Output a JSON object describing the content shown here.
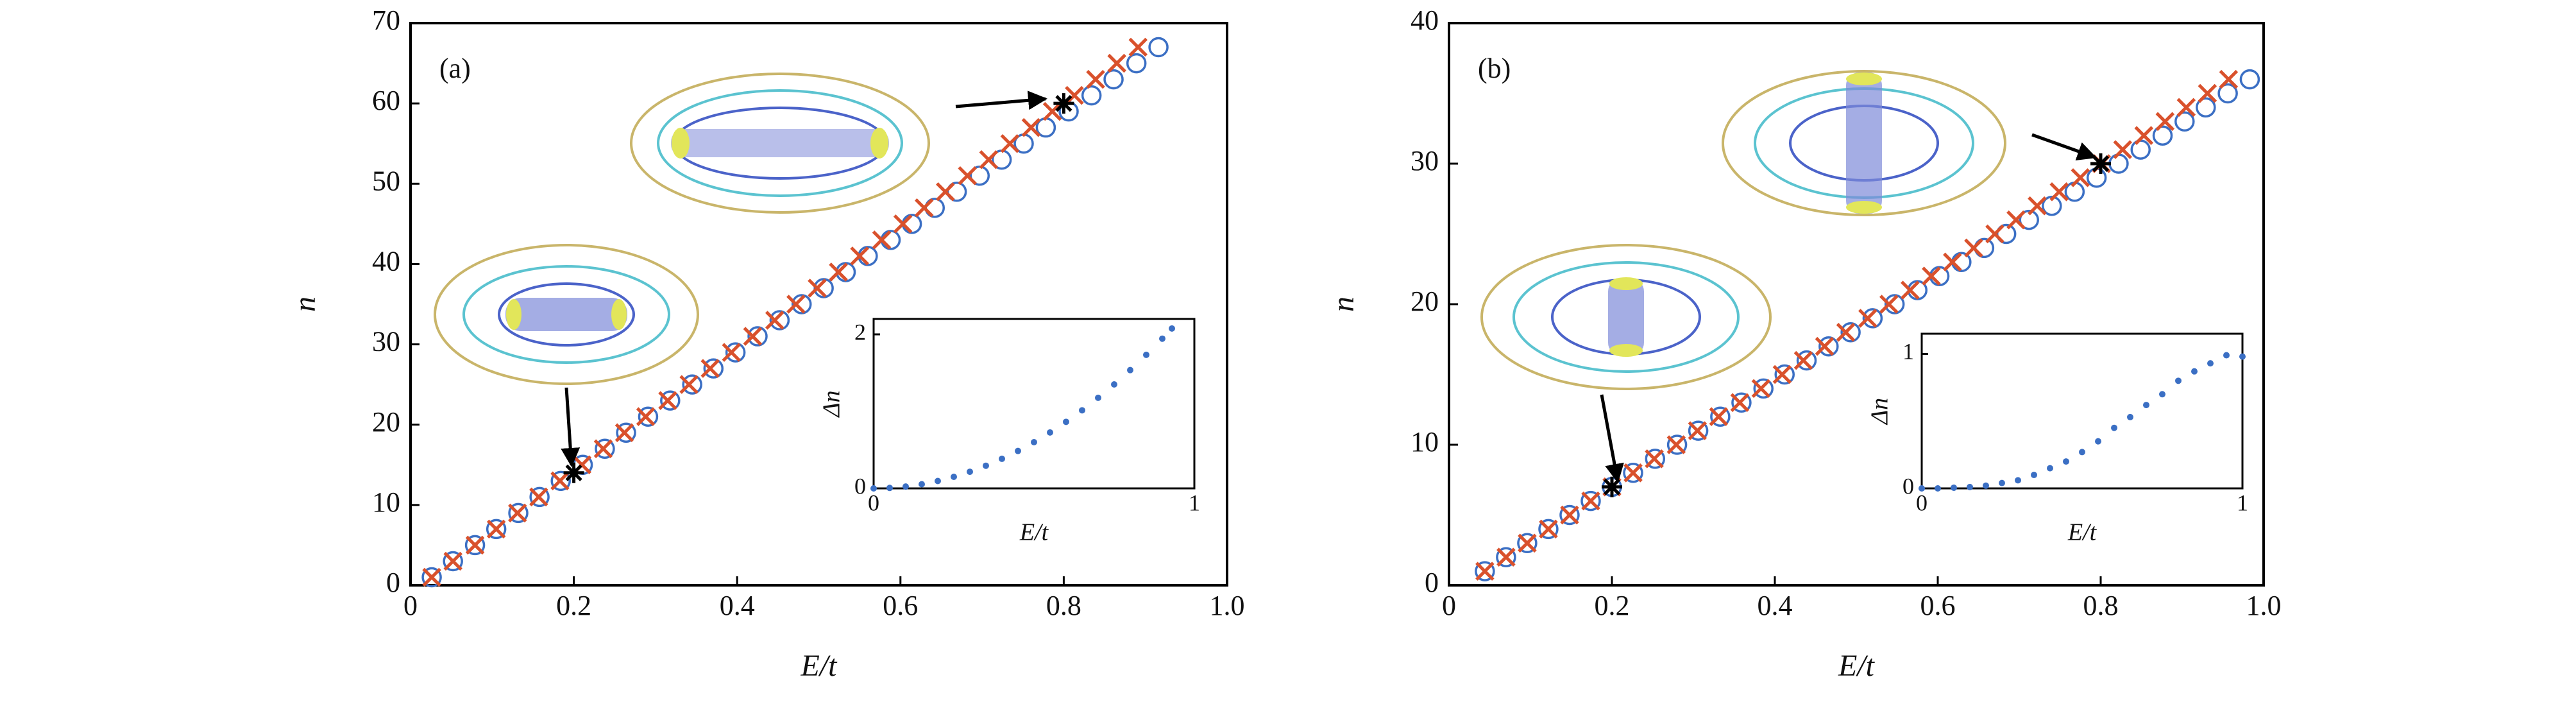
{
  "chart_data": [
    {
      "type": "scatter",
      "label": "(a)",
      "xlabel": "E/t",
      "ylabel": "n",
      "xlim": [
        0,
        1
      ],
      "ylim": [
        0,
        70
      ],
      "xticks": [
        0,
        0.2,
        0.4,
        0.6,
        0.8,
        {
          "value": 1,
          "label": "1.0"
        }
      ],
      "yticks": [
        0,
        10,
        20,
        30,
        40,
        50,
        60,
        70
      ],
      "series": [
        {
          "color": "#3b6fc4",
          "marker": "circle",
          "x": [
            0.026,
            0.052,
            0.079,
            0.105,
            0.132,
            0.158,
            0.184,
            0.211,
            0.238,
            0.264,
            0.291,
            0.318,
            0.345,
            0.371,
            0.398,
            0.425,
            0.452,
            0.479,
            0.506,
            0.533,
            0.56,
            0.588,
            0.614,
            0.642,
            0.669,
            0.697,
            0.724,
            0.751,
            0.778,
            0.806,
            0.834,
            0.861,
            0.889,
            0.916
          ],
          "values": [
            1,
            3,
            5,
            7,
            9,
            11,
            13,
            15,
            17,
            19,
            21,
            23,
            25,
            27,
            29,
            31,
            33,
            35,
            37,
            39,
            41,
            43,
            45,
            47,
            49,
            51,
            53,
            55,
            57,
            59,
            61,
            63,
            65,
            67
          ]
        },
        {
          "color": "#d9512c",
          "marker": "x",
          "x": [
            0.026,
            0.052,
            0.079,
            0.105,
            0.131,
            0.157,
            0.183,
            0.21,
            0.236,
            0.262,
            0.288,
            0.315,
            0.341,
            0.367,
            0.393,
            0.419,
            0.446,
            0.472,
            0.498,
            0.524,
            0.55,
            0.577,
            0.603,
            0.629,
            0.655,
            0.682,
            0.708,
            0.734,
            0.76,
            0.786,
            0.813,
            0.839,
            0.865,
            0.891
          ],
          "values": [
            1,
            3,
            5,
            7,
            9,
            11,
            13,
            15,
            17,
            19,
            21,
            23,
            25,
            27,
            29,
            31,
            33,
            35,
            37,
            39,
            41,
            43,
            45,
            47,
            49,
            51,
            53,
            55,
            57,
            59,
            61,
            63,
            65,
            67
          ]
        }
      ],
      "highlights": {
        "x": [
          0.2,
          0.8
        ],
        "values": [
          14,
          60
        ]
      },
      "inset": {
        "type": "scatter",
        "xlabel": "E/t",
        "ylabel": "Δn",
        "xlim": [
          0,
          1
        ],
        "ylim": [
          0,
          2.2
        ],
        "xticks": [
          0,
          1
        ],
        "yticks": [
          0,
          2
        ],
        "color": "#3b6fc4",
        "x": [
          0,
          0.05,
          0.1,
          0.15,
          0.2,
          0.25,
          0.3,
          0.35,
          0.4,
          0.45,
          0.5,
          0.55,
          0.6,
          0.65,
          0.7,
          0.75,
          0.8,
          0.85,
          0.9,
          0.93
        ],
        "values": [
          0,
          0.006,
          0.024,
          0.054,
          0.096,
          0.15,
          0.216,
          0.294,
          0.384,
          0.486,
          0.6,
          0.726,
          0.864,
          1.014,
          1.176,
          1.35,
          1.536,
          1.734,
          1.944,
          2.076
        ]
      }
    },
    {
      "type": "scatter",
      "label": "(b)",
      "xlabel": "E/t",
      "ylabel": "n",
      "xlim": [
        0,
        1
      ],
      "ylim": [
        0,
        40
      ],
      "xticks": [
        0,
        0.2,
        0.4,
        0.6,
        0.8,
        {
          "value": 1,
          "label": "1.0"
        }
      ],
      "yticks": [
        0,
        10,
        20,
        30,
        40
      ],
      "series": [
        {
          "color": "#3b6fc4",
          "marker": "circle",
          "x": [
            0.044,
            0.07,
            0.096,
            0.122,
            0.148,
            0.174,
            0.2,
            0.226,
            0.253,
            0.28,
            0.306,
            0.333,
            0.359,
            0.386,
            0.412,
            0.439,
            0.466,
            0.493,
            0.52,
            0.547,
            0.575,
            0.602,
            0.629,
            0.657,
            0.684,
            0.712,
            0.74,
            0.768,
            0.795,
            0.822,
            0.849,
            0.876,
            0.903,
            0.929,
            0.956,
            0.983
          ],
          "values": [
            1,
            2,
            3,
            4,
            5,
            6,
            7,
            8,
            9,
            10,
            11,
            12,
            13,
            14,
            15,
            16,
            17,
            18,
            19,
            20,
            21,
            22,
            23,
            24,
            25,
            26,
            27,
            28,
            29,
            30,
            31,
            32,
            33,
            34,
            35,
            36
          ]
        },
        {
          "color": "#d9512c",
          "marker": "x",
          "x": [
            0.044,
            0.07,
            0.096,
            0.122,
            0.148,
            0.174,
            0.2,
            0.226,
            0.252,
            0.279,
            0.305,
            0.331,
            0.357,
            0.383,
            0.409,
            0.435,
            0.461,
            0.487,
            0.514,
            0.54,
            0.566,
            0.592,
            0.618,
            0.644,
            0.67,
            0.696,
            0.722,
            0.749,
            0.775,
            0.801,
            0.827,
            0.853,
            0.879,
            0.905,
            0.931,
            0.957
          ],
          "values": [
            1,
            2,
            3,
            4,
            5,
            6,
            7,
            8,
            9,
            10,
            11,
            12,
            13,
            14,
            15,
            16,
            17,
            18,
            19,
            20,
            21,
            22,
            23,
            24,
            25,
            26,
            27,
            28,
            29,
            30,
            31,
            32,
            33,
            34,
            35,
            36
          ]
        }
      ],
      "highlights": {
        "x": [
          0.2,
          0.8
        ],
        "values": [
          7,
          30
        ]
      },
      "inset": {
        "type": "scatter",
        "xlabel": "E/t",
        "ylabel": "Δn",
        "xlim": [
          0,
          1
        ],
        "ylim": [
          0,
          1.15
        ],
        "xticks": [
          0,
          1
        ],
        "yticks": [
          0,
          1
        ],
        "color": "#3b6fc4",
        "x": [
          0,
          0.05,
          0.1,
          0.15,
          0.2,
          0.25,
          0.3,
          0.35,
          0.4,
          0.45,
          0.5,
          0.55,
          0.6,
          0.65,
          0.7,
          0.75,
          0.8,
          0.85,
          0.9,
          0.95,
          1
        ],
        "values": [
          0,
          0,
          0.005,
          0.01,
          0.02,
          0.04,
          0.06,
          0.1,
          0.15,
          0.2,
          0.27,
          0.35,
          0.45,
          0.53,
          0.62,
          0.7,
          0.8,
          0.87,
          0.93,
          0.99,
          0.98
        ]
      }
    }
  ]
}
